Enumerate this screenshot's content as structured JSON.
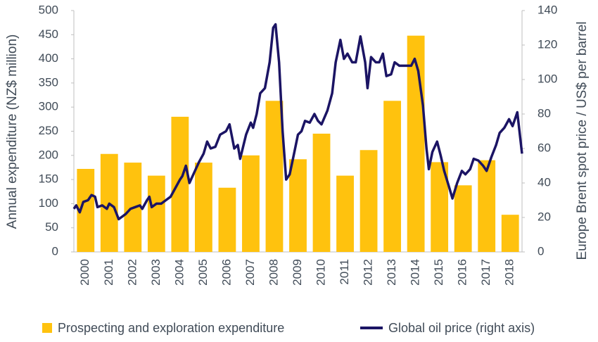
{
  "chart_data": {
    "type": "bar_line",
    "y_label": "Annual expenditure (NZ$ million)",
    "y2_label": "Europe Brent spot price / US$ per barrel",
    "categories": [
      "2000",
      "2001",
      "2002",
      "2003",
      "2004",
      "2005",
      "2006",
      "2007",
      "2008",
      "2009",
      "2010",
      "2011",
      "2012",
      "2013",
      "2014",
      "2015",
      "2016",
      "2017",
      "2018"
    ],
    "series": [
      {
        "name": "Prospecting and exploration expenditure",
        "color": "#FFC20E",
        "type": "bar",
        "values": [
          172,
          203,
          185,
          158,
          280,
          185,
          133,
          200,
          313,
          192,
          245,
          158,
          211,
          313,
          448,
          186,
          138,
          190,
          77
        ]
      },
      {
        "name": "Global oil price (right axis)",
        "color": "#1B1464",
        "type": "line",
        "axis": "y2",
        "x": [
          2000.0,
          2000.1,
          2000.25,
          2000.4,
          2000.6,
          2000.75,
          2000.9,
          2001.0,
          2001.2,
          2001.4,
          2001.5,
          2001.7,
          2001.9,
          2002.0,
          2002.2,
          2002.4,
          2002.6,
          2002.8,
          2002.9,
          2003.1,
          2003.2,
          2003.3,
          2003.5,
          2003.7,
          2003.9,
          2004.1,
          2004.3,
          2004.5,
          2004.6,
          2004.75,
          2004.9,
          2005.1,
          2005.3,
          2005.5,
          2005.65,
          2005.8,
          2006.0,
          2006.2,
          2006.45,
          2006.6,
          2006.8,
          2006.95,
          2007.05,
          2007.3,
          2007.5,
          2007.6,
          2007.75,
          2007.9,
          2008.1,
          2008.3,
          2008.45,
          2008.55,
          2008.7,
          2008.85,
          2009.0,
          2009.15,
          2009.35,
          2009.5,
          2009.65,
          2009.8,
          2010.0,
          2010.2,
          2010.35,
          2010.5,
          2010.75,
          2010.95,
          2011.1,
          2011.3,
          2011.45,
          2011.6,
          2011.8,
          2011.95,
          2012.15,
          2012.35,
          2012.45,
          2012.6,
          2012.8,
          2012.95,
          2013.1,
          2013.25,
          2013.45,
          2013.6,
          2013.8,
          2014.0,
          2014.3,
          2014.45,
          2014.6,
          2014.8,
          2014.95,
          2015.05,
          2015.2,
          2015.4,
          2015.55,
          2015.7,
          2015.9,
          2016.05,
          2016.25,
          2016.45,
          2016.6,
          2016.8,
          2016.95,
          2017.15,
          2017.35,
          2017.5,
          2017.7,
          2017.9,
          2018.05,
          2018.25,
          2018.45,
          2018.6,
          2018.8,
          2019.0
        ],
        "values": [
          25,
          27,
          23,
          29,
          30,
          33,
          32,
          26,
          27,
          25,
          28,
          26,
          19,
          20,
          22,
          25,
          26,
          27,
          25,
          30,
          32,
          26,
          28,
          28,
          30,
          32,
          37,
          42,
          44,
          50,
          40,
          46,
          52,
          57,
          64,
          60,
          61,
          68,
          70,
          74,
          60,
          62,
          54,
          68,
          75,
          72,
          80,
          92,
          95,
          110,
          130,
          132,
          110,
          70,
          42,
          45,
          58,
          68,
          70,
          76,
          75,
          80,
          76,
          74,
          82,
          92,
          110,
          123,
          112,
          115,
          110,
          110,
          125,
          110,
          95,
          113,
          110,
          110,
          115,
          102,
          103,
          110,
          108,
          108,
          108,
          112,
          105,
          85,
          60,
          48,
          58,
          64,
          56,
          47,
          38,
          31,
          40,
          47,
          45,
          48,
          54,
          53,
          50,
          47,
          55,
          62,
          69,
          72,
          77,
          73,
          81,
          57
        ]
      }
    ],
    "ylim": [
      0,
      500
    ],
    "yticks": [
      0,
      50,
      100,
      150,
      200,
      250,
      300,
      350,
      400,
      450,
      500
    ],
    "y2lim": [
      0,
      140
    ],
    "y2ticks": [
      0,
      20,
      40,
      60,
      80,
      100,
      120,
      140
    ],
    "xlim": [
      2000,
      2019
    ],
    "legend": "bottom"
  }
}
